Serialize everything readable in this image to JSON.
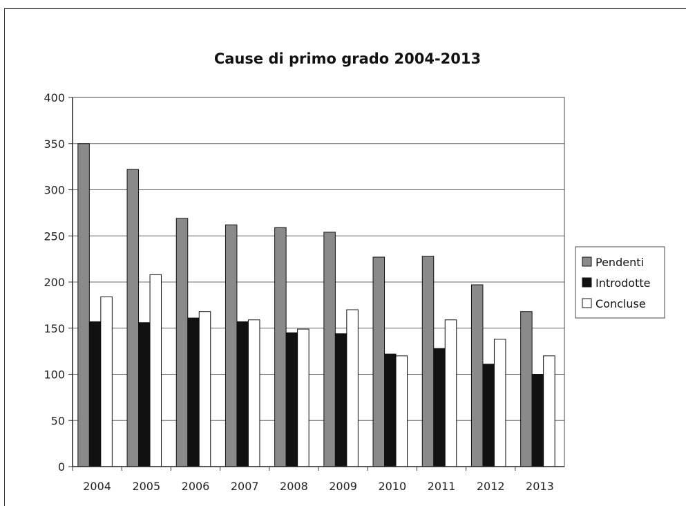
{
  "chart_data": {
    "type": "bar",
    "title": "Cause di primo grado 2004-2013",
    "xlabel": "",
    "ylabel": "",
    "categories": [
      "2004",
      "2005",
      "2006",
      "2007",
      "2008",
      "2009",
      "2010",
      "2011",
      "2012",
      "2013"
    ],
    "series": [
      {
        "name": "Pendenti",
        "color": "#8a8a8a",
        "values": [
          350,
          322,
          269,
          262,
          259,
          254,
          227,
          228,
          197,
          168
        ]
      },
      {
        "name": "Introdotte",
        "color": "#111111",
        "values": [
          157,
          156,
          161,
          157,
          145,
          144,
          122,
          128,
          111,
          100
        ]
      },
      {
        "name": "Concluse",
        "color": "#ffffff",
        "values": [
          184,
          208,
          168,
          159,
          149,
          170,
          120,
          159,
          138,
          120
        ]
      }
    ],
    "ylim": [
      0,
      400
    ],
    "yticks": [
      "0",
      "50",
      "100",
      "150",
      "200",
      "250",
      "300",
      "350",
      "400"
    ],
    "grid": true,
    "legend_position": "right"
  }
}
